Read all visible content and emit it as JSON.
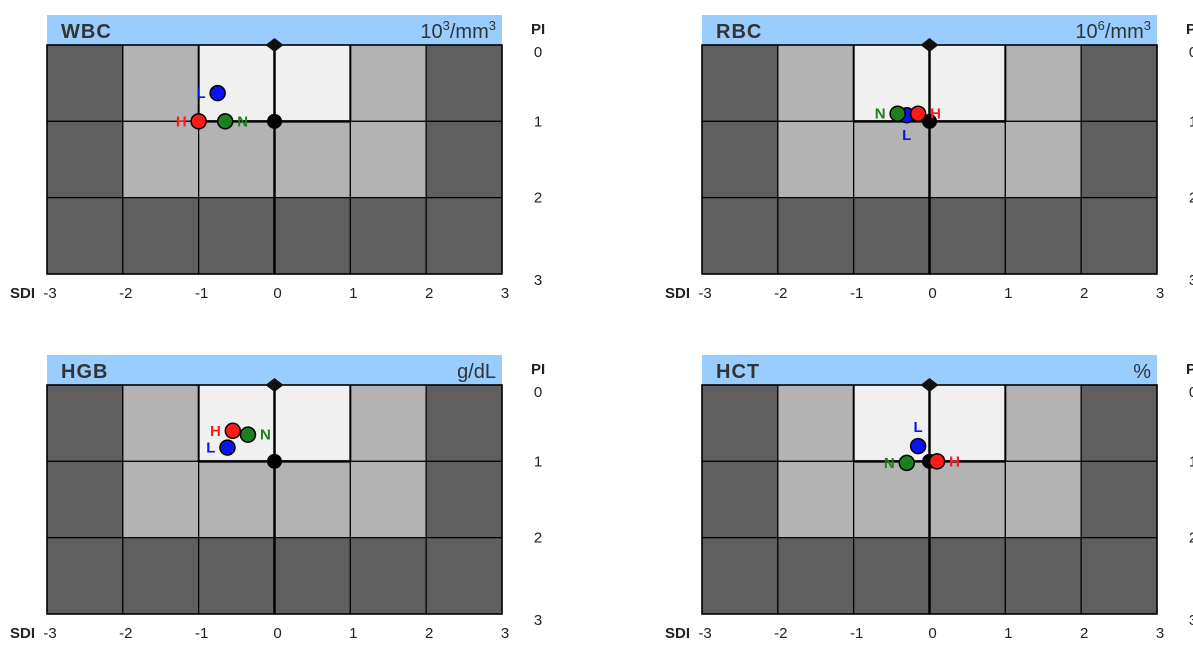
{
  "colors": {
    "header_bg": "#99ccff",
    "zone_inner": "#f0f0f0",
    "zone_mid": "#b3b3b3",
    "zone_outer": "#5f5f5f",
    "grid_line": "#000000",
    "series_L": "#0a14f0",
    "series_H": "#ff1a1a",
    "series_N": "#1e7f1e",
    "target": "#000000"
  },
  "axis_labels": {
    "pi": "PI",
    "sdi": "SDI"
  },
  "chart_data": [
    {
      "type": "scatter",
      "title": "WBC",
      "unit_base": "10",
      "unit_exp": "3",
      "unit_mid": "/mm",
      "unit_exp2": "3",
      "x_label": "SDI",
      "y_label": "PI",
      "xlim": [
        -3,
        3
      ],
      "ylim": [
        0,
        3
      ],
      "x_ticks": [
        "-3",
        "-2",
        "-1",
        "0",
        "1",
        "2",
        "3"
      ],
      "y_ticks": [
        "0",
        "1",
        "2",
        "3"
      ],
      "target": {
        "x": 0,
        "y": 1
      },
      "points": [
        {
          "label": "L",
          "color": "series_L",
          "x": -0.75,
          "y": 0.63,
          "label_side": "left"
        },
        {
          "label": "H",
          "color": "series_H",
          "x": -1.0,
          "y": 1.0,
          "label_side": "left"
        },
        {
          "label": "N",
          "color": "series_N",
          "x": -0.65,
          "y": 1.0,
          "label_side": "right"
        }
      ]
    },
    {
      "type": "scatter",
      "title": "RBC",
      "unit_base": "10",
      "unit_exp": "6",
      "unit_mid": "/mm",
      "unit_exp2": "3",
      "x_label": "SDI",
      "y_label": "PI",
      "xlim": [
        -3,
        3
      ],
      "ylim": [
        0,
        3
      ],
      "x_ticks": [
        "-3",
        "-2",
        "-1",
        "0",
        "1",
        "2",
        "3"
      ],
      "y_ticks": [
        "0",
        "1",
        "2",
        "3"
      ],
      "target": {
        "x": 0,
        "y": 1
      },
      "points": [
        {
          "label": "L",
          "color": "series_L",
          "x": -0.3,
          "y": 0.92,
          "label_side": "below"
        },
        {
          "label": "N",
          "color": "series_N",
          "x": -0.42,
          "y": 0.9,
          "label_side": "left"
        },
        {
          "label": "H",
          "color": "series_H",
          "x": -0.15,
          "y": 0.9,
          "label_side": "right"
        }
      ]
    },
    {
      "type": "scatter",
      "title": "HGB",
      "unit_base": "g/dL",
      "unit_exp": "",
      "unit_mid": "",
      "unit_exp2": "",
      "x_label": "SDI",
      "y_label": "PI",
      "xlim": [
        -3,
        3
      ],
      "ylim": [
        0,
        3
      ],
      "x_ticks": [
        "-3",
        "-2",
        "-1",
        "0",
        "1",
        "2",
        "3"
      ],
      "y_ticks": [
        "0",
        "1",
        "2",
        "3"
      ],
      "target": {
        "x": 0,
        "y": 1
      },
      "points": [
        {
          "label": "H",
          "color": "series_H",
          "x": -0.55,
          "y": 0.6,
          "label_side": "left"
        },
        {
          "label": "N",
          "color": "series_N",
          "x": -0.35,
          "y": 0.65,
          "label_side": "right"
        },
        {
          "label": "L",
          "color": "series_L",
          "x": -0.62,
          "y": 0.82,
          "label_side": "left"
        }
      ]
    },
    {
      "type": "scatter",
      "title": "HCT",
      "unit_base": "%",
      "unit_exp": "",
      "unit_mid": "",
      "unit_exp2": "",
      "x_label": "SDI",
      "y_label": "PI",
      "xlim": [
        -3,
        3
      ],
      "ylim": [
        0,
        3
      ],
      "x_ticks": [
        "-3",
        "-2",
        "-1",
        "0",
        "1",
        "2",
        "3"
      ],
      "y_ticks": [
        "0",
        "1",
        "2",
        "3"
      ],
      "target": {
        "x": 0,
        "y": 1
      },
      "points": [
        {
          "label": "L",
          "color": "series_L",
          "x": -0.15,
          "y": 0.8,
          "label_side": "above"
        },
        {
          "label": "N",
          "color": "series_N",
          "x": -0.3,
          "y": 1.02,
          "label_side": "left"
        },
        {
          "label": "H",
          "color": "series_H",
          "x": 0.1,
          "y": 1.0,
          "label_side": "right"
        }
      ]
    }
  ]
}
